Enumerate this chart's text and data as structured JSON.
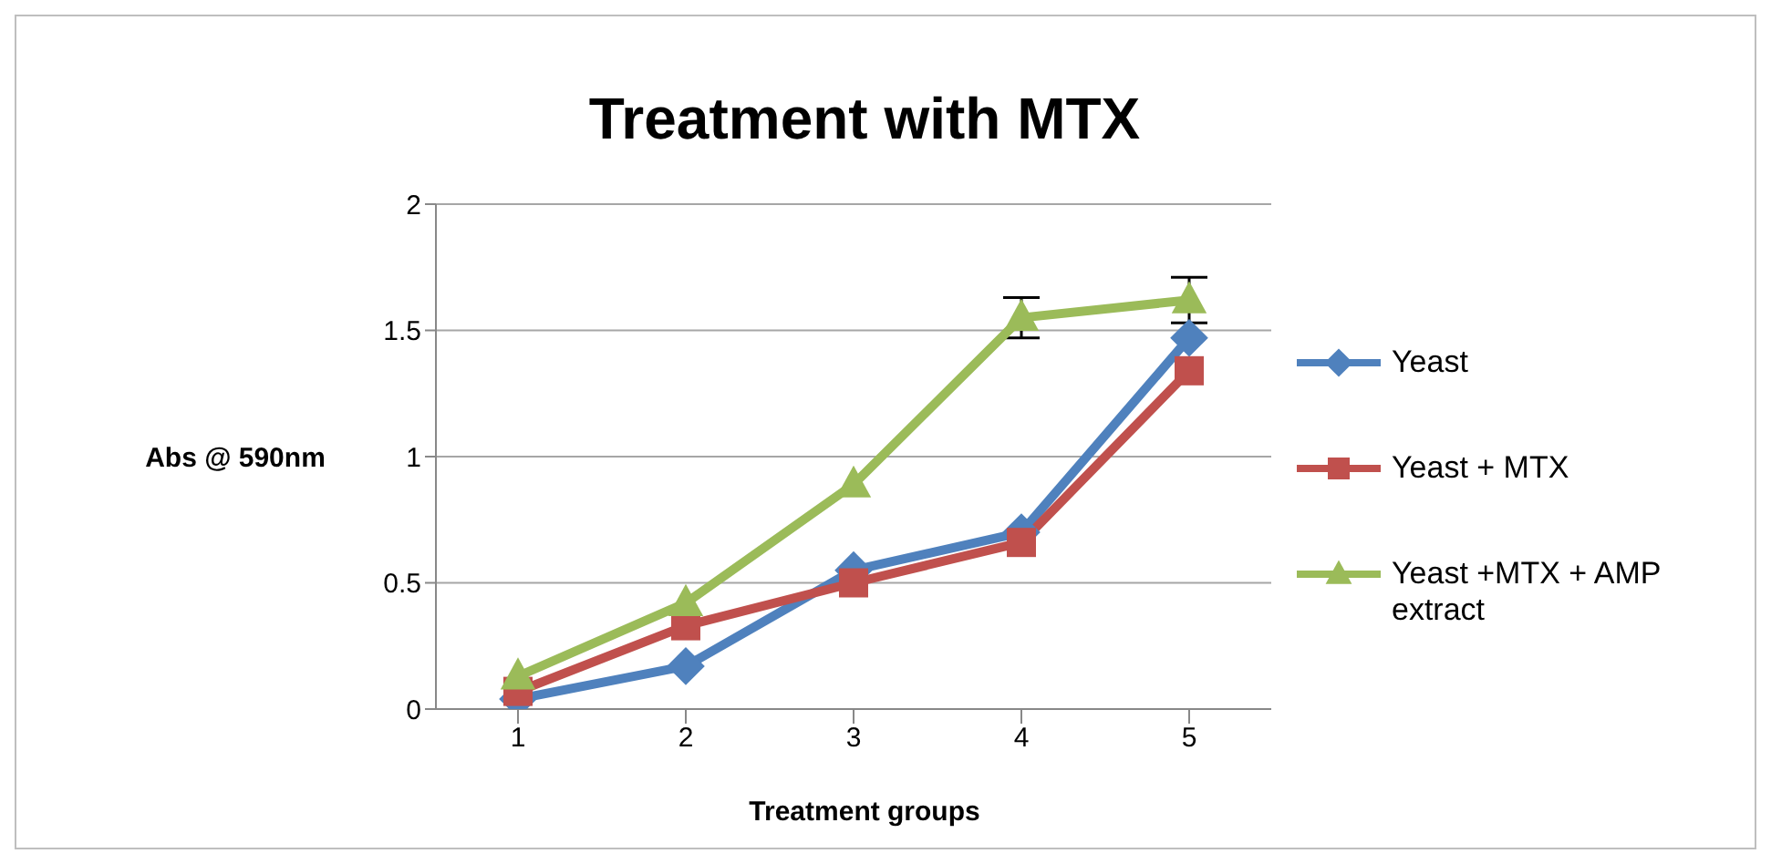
{
  "chart_data": {
    "type": "line",
    "title": "Treatment with MTX",
    "xlabel": "Treatment groups",
    "ylabel": "Abs @ 590nm",
    "categories": [
      "1",
      "2",
      "3",
      "4",
      "5"
    ],
    "series": [
      {
        "name": "Yeast",
        "color": "#4f81bd",
        "marker": "diamond",
        "values": [
          0.04,
          0.17,
          0.55,
          0.7,
          1.47
        ]
      },
      {
        "name": "Yeast + MTX",
        "color": "#c0504d",
        "marker": "square",
        "values": [
          0.07,
          0.33,
          0.5,
          0.66,
          1.34
        ]
      },
      {
        "name": "Yeast +MTX + AMP extract",
        "color": "#9bbb59",
        "marker": "triangle",
        "values": [
          0.13,
          0.42,
          0.89,
          1.55,
          1.62
        ],
        "errors": [
          null,
          null,
          null,
          0.08,
          0.09
        ]
      }
    ],
    "ylim": [
      0,
      2
    ],
    "yticks": [
      0,
      0.5,
      1,
      1.5,
      2
    ],
    "grid": "y",
    "legend": "right"
  }
}
